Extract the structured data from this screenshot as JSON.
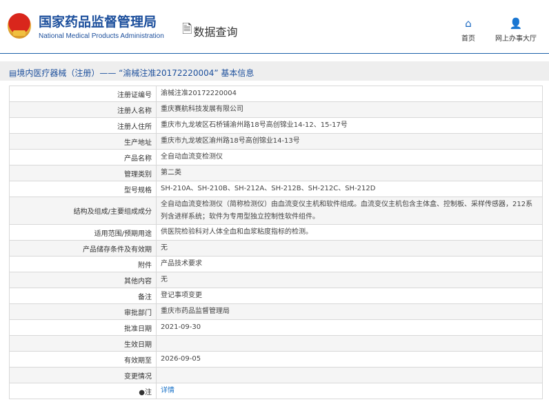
{
  "header": {
    "title_cn": "国家药品监督管理局",
    "title_en": "National Medical Products Administration",
    "query": "数据查询",
    "nav": [
      {
        "label": "首页",
        "icon": "home-icon"
      },
      {
        "label": "网上办事大厅",
        "icon": "user-icon"
      }
    ]
  },
  "breadcrumb": "境内医疗器械（注册）—— “渝械注准20172220004” 基本信息",
  "rows": [
    {
      "label": "注册证编号",
      "value": "渝械注准20172220004"
    },
    {
      "label": "注册人名称",
      "value": "重庆赛航科技发展有限公司"
    },
    {
      "label": "注册人住所",
      "value": "重庆市九龙坡区石桥铺渝州路18号高创锦业14-12、15-17号"
    },
    {
      "label": "生产地址",
      "value": "重庆市九龙坡区渝州路18号高创锦业14-13号"
    },
    {
      "label": "产品名称",
      "value": "全自动血流变检测仪"
    },
    {
      "label": "管理类别",
      "value": "第二类"
    },
    {
      "label": "型号规格",
      "value": "SH-210A、SH-210B、SH-212A、SH-212B、SH-212C、SH-212D"
    },
    {
      "label": "结构及组成/主要组成成分",
      "value": "全自动血流变检测仪（简称检测仪）由血流变仪主机和软件组成。血流变仪主机包含主体盒、控制板、采样传感器，212系列含进样系统；软件为专用型独立控制性软件组件。"
    },
    {
      "label": "适用范围/预期用途",
      "value": "供医院检验科对人体全血和血浆粘度指标的检测。"
    },
    {
      "label": "产品储存条件及有效期",
      "value": "无"
    },
    {
      "label": "附件",
      "value": "产品技术要求"
    },
    {
      "label": "其他内容",
      "value": "无"
    },
    {
      "label": "备注",
      "value": "登记事项变更"
    },
    {
      "label": "审批部门",
      "value": "重庆市药品监督管理局"
    },
    {
      "label": "批准日期",
      "value": "2021-09-30"
    },
    {
      "label": "生效日期",
      "value": ""
    },
    {
      "label": "有效期至",
      "value": "2026-09-05"
    },
    {
      "label": "变更情况",
      "value": ""
    }
  ],
  "note": {
    "label": "注",
    "link": "详情"
  }
}
